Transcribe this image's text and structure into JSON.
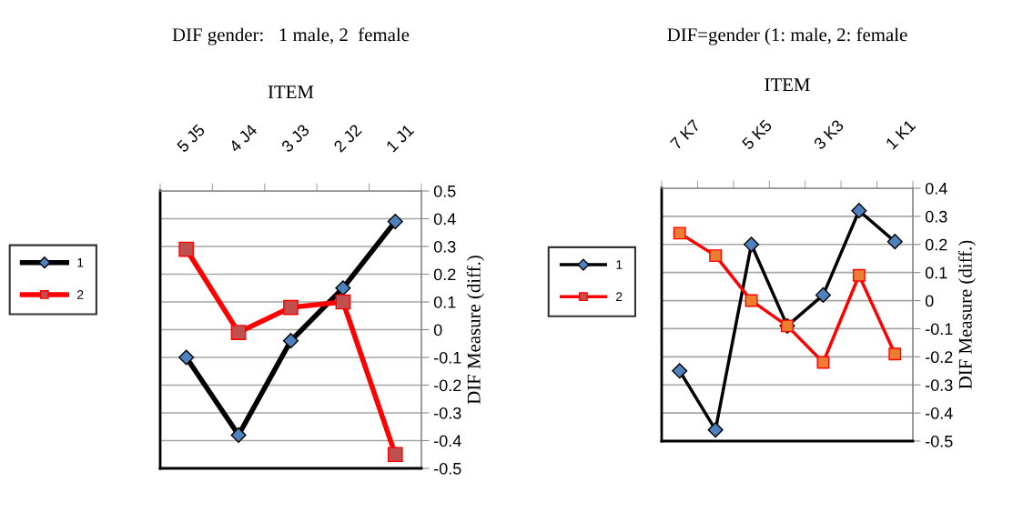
{
  "chart_data": [
    {
      "type": "line",
      "title": "DIF gender:   1 male, 2  female",
      "xlabel": "ITEM",
      "ylabel": "DIF Measure (diff.)",
      "categories": [
        "5 J5",
        "4 J4",
        "3 J3",
        "2 J2",
        "1 J1"
      ],
      "series": [
        {
          "name": "1",
          "color": "#000000",
          "marker": "diamond",
          "values": [
            -0.1,
            -0.38,
            -0.04,
            0.15,
            0.39
          ]
        },
        {
          "name": "2",
          "color": "#ff0000",
          "marker": "square",
          "values": [
            0.29,
            -0.01,
            0.08,
            0.1,
            -0.45
          ]
        }
      ],
      "ylim": [
        -0.5,
        0.5
      ],
      "yticks": [
        -0.5,
        -0.4,
        -0.3,
        -0.2,
        -0.1,
        0,
        0.1,
        0.2,
        0.3,
        0.4,
        0.5
      ],
      "grid": "y",
      "legend": "left"
    },
    {
      "type": "line",
      "title": "DIF=gender (1: male, 2: female",
      "xlabel": "ITEM",
      "ylabel": "DIF Measure (diff.)",
      "categories": [
        "7 K7",
        null,
        "5 K5",
        null,
        "3 K3",
        null,
        "1 K1"
      ],
      "series": [
        {
          "name": "1",
          "color": "#000000",
          "marker": "diamond",
          "values": [
            -0.25,
            -0.46,
            0.2,
            -0.09,
            0.02,
            0.32,
            0.21
          ]
        },
        {
          "name": "2",
          "color": "#ff0000",
          "marker": "square",
          "values": [
            0.24,
            0.16,
            0.0,
            -0.09,
            -0.22,
            0.09,
            -0.19
          ]
        }
      ],
      "ylim": [
        -0.5,
        0.4
      ],
      "yticks": [
        -0.5,
        -0.4,
        -0.3,
        -0.2,
        -0.1,
        0,
        0.1,
        0.2,
        0.3,
        0.4
      ],
      "grid": "y",
      "legend": "left"
    }
  ]
}
